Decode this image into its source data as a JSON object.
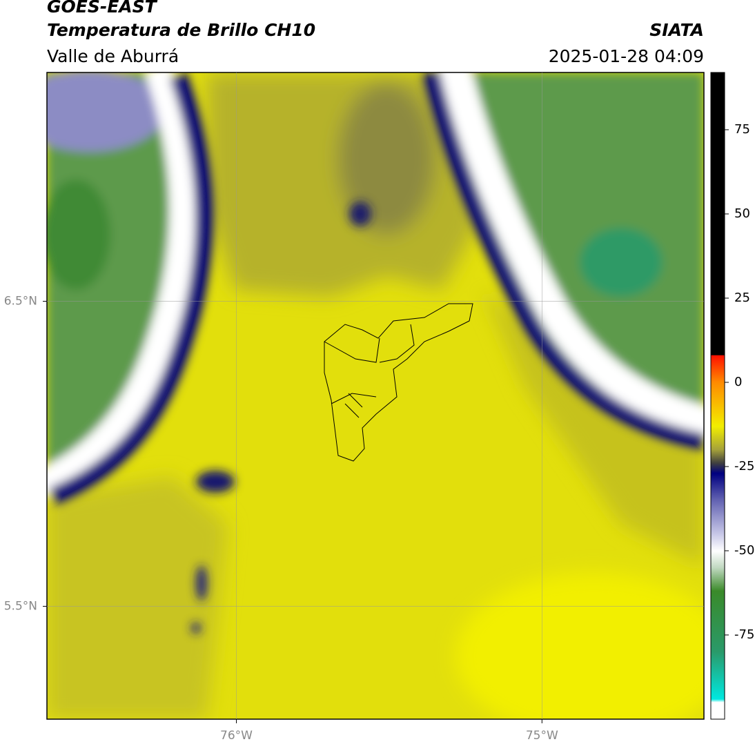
{
  "header": {
    "satellite": "GOES-EAST",
    "product": "Temperatura de Brillo CH10",
    "region": "Valle de Aburrá",
    "source": "SIATA",
    "datetime": "2025-01-28 04:09"
  },
  "map": {
    "lon_lim": [
      -76.62,
      -74.47
    ],
    "lat_lim": [
      5.13,
      7.25
    ],
    "lat_ticks": [
      {
        "value": 6.5,
        "label": "6.5°N"
      },
      {
        "value": 5.5,
        "label": "5.5°N"
      }
    ],
    "lon_ticks": [
      {
        "value": -76,
        "label": "76°W"
      },
      {
        "value": -75,
        "label": "75°W"
      }
    ],
    "grid": true
  },
  "colorbar": {
    "lim": [
      -100,
      92
    ],
    "ticks": [
      -75,
      -50,
      -25,
      0,
      25,
      50,
      75
    ]
  }
}
